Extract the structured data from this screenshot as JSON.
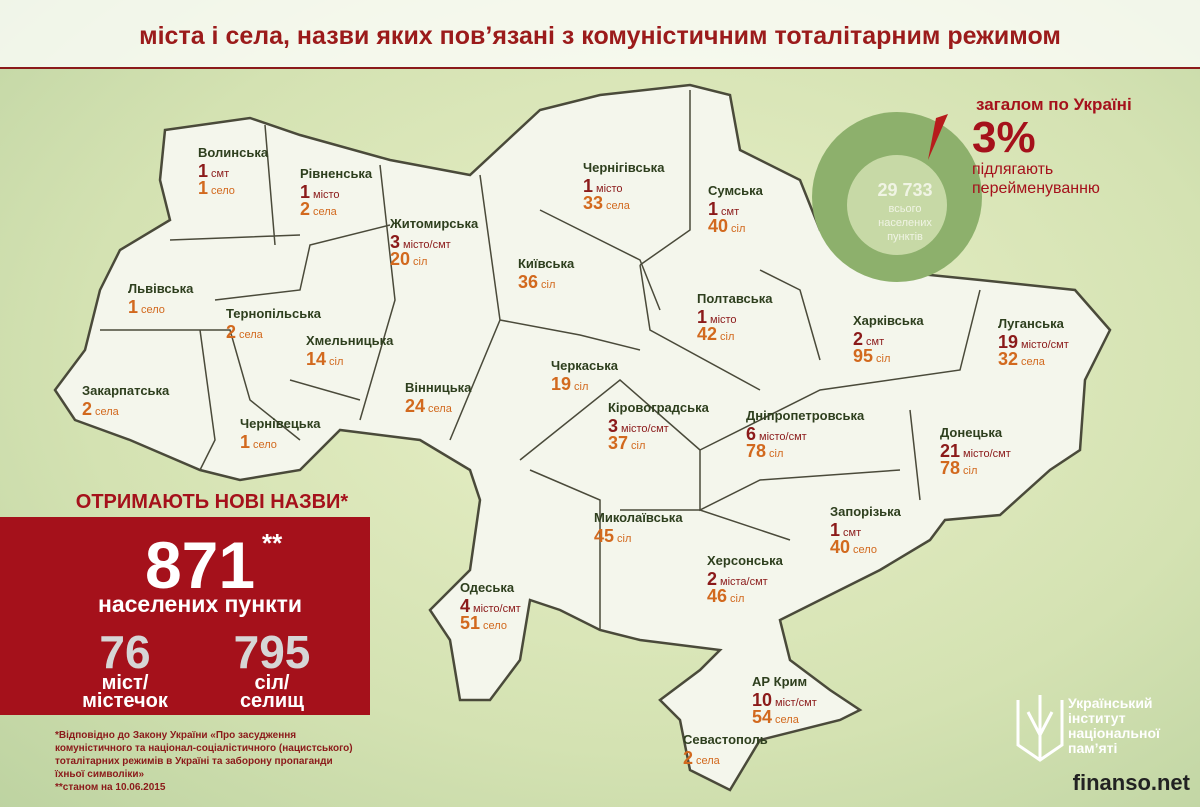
{
  "title": "міста і села, назви яких пов’язані з комуністичним тоталітарним режимом",
  "regions": [
    {
      "name": "Волинська",
      "counts": [
        {
          "n": 1,
          "unit": "смт"
        },
        {
          "n": 1,
          "unit": "село"
        }
      ]
    },
    {
      "name": "Рівненська",
      "counts": [
        {
          "n": 1,
          "unit": "місто"
        },
        {
          "n": 2,
          "unit": "села"
        }
      ]
    },
    {
      "name": "Житомирська",
      "counts": [
        {
          "n": 3,
          "unit": "місто/смт"
        },
        {
          "n": 20,
          "unit": "сіл"
        }
      ]
    },
    {
      "name": "Чернігівська",
      "counts": [
        {
          "n": 1,
          "unit": "місто"
        },
        {
          "n": 33,
          "unit": "села"
        }
      ]
    },
    {
      "name": "Сумська",
      "counts": [
        {
          "n": 1,
          "unit": "смт"
        },
        {
          "n": 40,
          "unit": "сіл"
        }
      ]
    },
    {
      "name": "Київська",
      "counts": [
        {
          "n": 36,
          "unit": "сіл"
        }
      ]
    },
    {
      "name": "Львівська",
      "counts": [
        {
          "n": 1,
          "unit": "село"
        }
      ]
    },
    {
      "name": "Тернопільська",
      "counts": [
        {
          "n": 2,
          "unit": "села"
        }
      ]
    },
    {
      "name": "Хмельницька",
      "counts": [
        {
          "n": 14,
          "unit": "сіл"
        }
      ]
    },
    {
      "name": "Полтавська",
      "counts": [
        {
          "n": 1,
          "unit": "місто"
        },
        {
          "n": 42,
          "unit": "сіл"
        }
      ]
    },
    {
      "name": "Харківська",
      "counts": [
        {
          "n": 2,
          "unit": "смт"
        },
        {
          "n": 95,
          "unit": "сіл"
        }
      ]
    },
    {
      "name": "Луганська",
      "counts": [
        {
          "n": 19,
          "unit": "місто/смт"
        },
        {
          "n": 32,
          "unit": "села"
        }
      ]
    },
    {
      "name": "Закарпатська",
      "counts": [
        {
          "n": 2,
          "unit": "села"
        }
      ]
    },
    {
      "name": "Вінницька",
      "counts": [
        {
          "n": 24,
          "unit": "села"
        }
      ]
    },
    {
      "name": "Черкаська",
      "counts": [
        {
          "n": 19,
          "unit": "сіл"
        }
      ]
    },
    {
      "name": "Кіровоградська",
      "counts": [
        {
          "n": 3,
          "unit": "місто/смт"
        },
        {
          "n": 37,
          "unit": "сіл"
        }
      ]
    },
    {
      "name": "Дніпропетровська",
      "counts": [
        {
          "n": 6,
          "unit": "місто/смт"
        },
        {
          "n": 78,
          "unit": "сіл"
        }
      ]
    },
    {
      "name": "Донецька",
      "counts": [
        {
          "n": 21,
          "unit": "місто/смт"
        },
        {
          "n": 78,
          "unit": "сіл"
        }
      ]
    },
    {
      "name": "Чернівецька",
      "counts": [
        {
          "n": 1,
          "unit": "село"
        }
      ]
    },
    {
      "name": "Миколаївська",
      "counts": [
        {
          "n": 45,
          "unit": "сіл"
        }
      ]
    },
    {
      "name": "Запорізька",
      "counts": [
        {
          "n": 1,
          "unit": "смт"
        },
        {
          "n": 40,
          "unit": "село"
        }
      ]
    },
    {
      "name": "Херсонська",
      "counts": [
        {
          "n": 2,
          "unit": "міста/смт"
        },
        {
          "n": 46,
          "unit": "сіл"
        }
      ]
    },
    {
      "name": "Одеська",
      "counts": [
        {
          "n": 4,
          "unit": "місто/смт"
        },
        {
          "n": 51,
          "unit": "село"
        }
      ]
    },
    {
      "name": "АР Крим",
      "counts": [
        {
          "n": 10,
          "unit": "міст/смт"
        },
        {
          "n": 54,
          "unit": "села"
        }
      ]
    },
    {
      "name": "Севастополь",
      "counts": [
        {
          "n": 2,
          "unit": "села"
        }
      ]
    }
  ],
  "overall": {
    "heading": "загалом по Україні",
    "percent": "3%",
    "caption": [
      "підлягають",
      "перейменуванню"
    ],
    "total": "29 733",
    "total_label": [
      "всього",
      "населених",
      "пунктів"
    ]
  },
  "new_names": {
    "heading": "ОТРИМАЮТЬ НОВІ НАЗВИ*",
    "total": 871,
    "total_mark": "**",
    "total_label": "населених пункти",
    "towns": 76,
    "towns_label": [
      "міст/",
      "містечок"
    ],
    "villages": 795,
    "villages_label": [
      "сіл/",
      "селищ"
    ]
  },
  "notes": [
    "*Відповідно до Закону України «Про засудження",
    "комуністичного та націонал-соціалістичного (нацистського)",
    "тоталітарних режимів в Україні та заборону пропаганди",
    "їхньої символіки»",
    "**станом на 10.06.2015"
  ],
  "logo": [
    "Український",
    "інститут",
    "національної",
    "пам’яті"
  ],
  "watermark": "finanso.net"
}
